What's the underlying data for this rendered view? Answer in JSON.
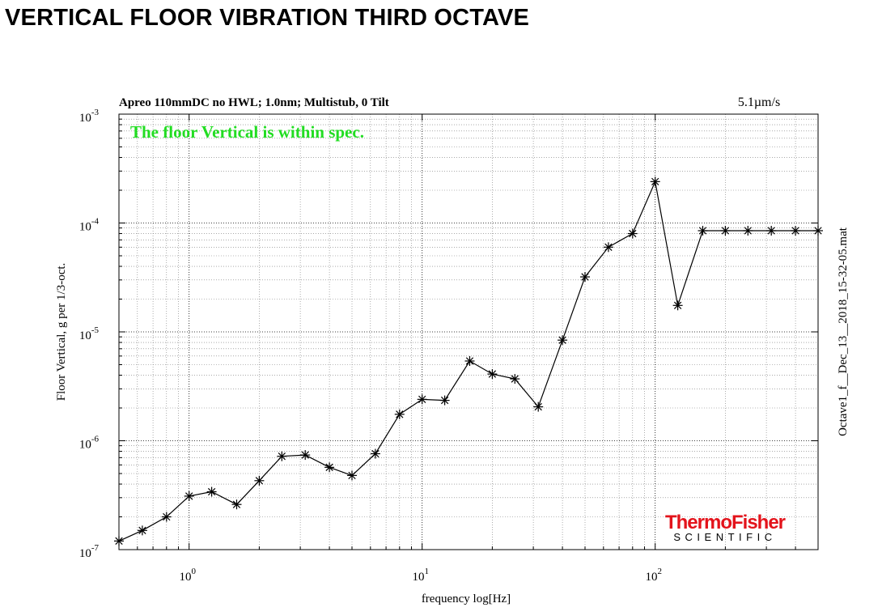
{
  "page": {
    "title": "VERTICAL FLOOR VIBRATION THIRD OCTAVE"
  },
  "chart_data": {
    "type": "line",
    "title": "Apreo 110mmDC no HWL; 1.0nm; Multistub, 0 Tilt",
    "top_right_label": "5.1µm/s",
    "status_text": "The floor Vertical is within spec.",
    "status_color": "#22dd22",
    "right_label": "Octave1_f__Dec_13__2018_15-32-05.mat",
    "xlabel": "frequency  log[Hz]",
    "ylabel": "Floor Vertical,  g per 1/3-oct.",
    "xscale": "log",
    "yscale": "log",
    "xlim": [
      0.5,
      500
    ],
    "ylim": [
      1e-07,
      0.001
    ],
    "grid": true,
    "x_tick_labels": [
      {
        "base": "10",
        "exp": "0"
      },
      {
        "base": "10",
        "exp": "1"
      },
      {
        "base": "10",
        "exp": "2"
      }
    ],
    "y_tick_labels": [
      {
        "base": "10",
        "exp": "-7"
      },
      {
        "base": "10",
        "exp": "-6"
      },
      {
        "base": "10",
        "exp": "-5"
      },
      {
        "base": "10",
        "exp": "-4"
      },
      {
        "base": "10",
        "exp": "-3"
      }
    ],
    "marker": "asterisk",
    "line_color": "#000000",
    "logo": {
      "line1": "ThermoFisher",
      "line2": "SCIENTIFIC",
      "color": "#e3131b",
      "text_color": "#000000"
    },
    "x": [
      0.5,
      0.63,
      0.8,
      1.0,
      1.25,
      1.6,
      2.0,
      2.5,
      3.15,
      4.0,
      5.0,
      6.3,
      8.0,
      10,
      12.5,
      16,
      20,
      25,
      31.5,
      40,
      50,
      63,
      80,
      100,
      125,
      160,
      200,
      250,
      315,
      400,
      500
    ],
    "y": [
      1.2e-07,
      1.5e-07,
      2e-07,
      3.1e-07,
      3.4e-07,
      2.6e-07,
      4.3e-07,
      7.2e-07,
      7.4e-07,
      5.7e-07,
      4.8e-07,
      7.6e-07,
      1.75e-06,
      2.4e-06,
      2.35e-06,
      5.4e-06,
      4.1e-06,
      3.7e-06,
      2.05e-06,
      8.4e-06,
      3.2e-05,
      6e-05,
      8e-05,
      0.00024,
      1.75e-05,
      8.5e-05,
      8.5e-05,
      8.5e-05,
      8.5e-05,
      8.5e-05,
      8.5e-05
    ]
  }
}
